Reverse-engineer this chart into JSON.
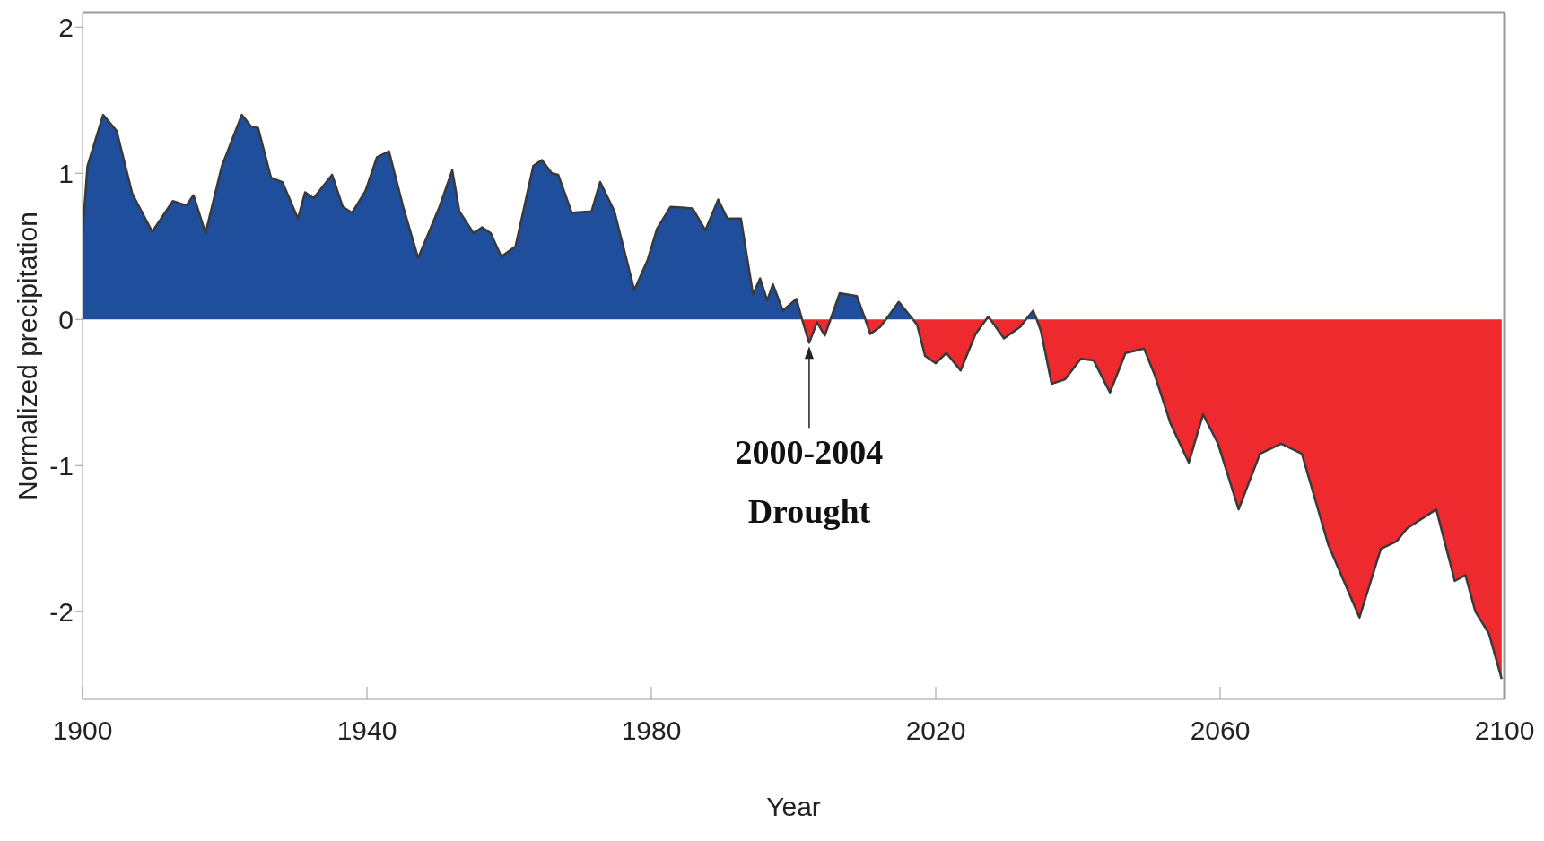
{
  "chart_data": {
    "type": "area",
    "xlabel": "Year",
    "ylabel": "Normalized precipitation",
    "xlim": [
      1900,
      2100
    ],
    "xticks": [
      1900,
      1940,
      1980,
      2020,
      2060,
      2100
    ],
    "ylim": [
      -2.6,
      2.1
    ],
    "yticks": [
      -2,
      -1,
      0,
      1,
      2
    ],
    "grid": false,
    "annotations": [
      {
        "text": "2000-2004 Drought",
        "x": 2002.2,
        "y": -0.16
      }
    ],
    "x": [
      1900,
      1900.7,
      1902.9,
      1904.8,
      1907,
      1909.8,
      1912.7,
      1914.6,
      1915.6,
      1917.3,
      1919.6,
      1922.4,
      1923.7,
      1924.7,
      1926.5,
      1928.1,
      1930.3,
      1931.3,
      1932.5,
      1935.1,
      1936.6,
      1937.9,
      1939.8,
      1941.4,
      1943.1,
      1945.1,
      1947.2,
      1950.2,
      1952,
      1953,
      1955,
      1956.2,
      1957.4,
      1958.9,
      1960.9,
      1963.4,
      1964.6,
      1966,
      1966.9,
      1968.8,
      1971.6,
      1972.8,
      1974.8,
      1977.6,
      1979.5,
      1980.8,
      1982.7,
      1985.8,
      1987.6,
      1989.4,
      1990.7,
      1992.6,
      1994.3,
      1995.3,
      1996.3,
      1997.1,
      1998.5,
      2000.4,
      2001.2,
      2002.2,
      2003.3,
      2004.4,
      2005.2,
      2006.5,
      2008.9,
      2010.1,
      2010.8,
      2012.2,
      2013.0,
      2014.8,
      2016.8,
      2017.4,
      2018.5,
      2020,
      2021.5,
      2023.5,
      2025.6,
      2027.4,
      2029.6,
      2031.9,
      2032.7,
      2033.7,
      2034.2,
      2034.8,
      2036.3,
      2038.2,
      2040.4,
      2042.2,
      2044.5,
      2046.7,
      2049.3,
      2050.8,
      2053,
      2055.6,
      2057.6,
      2059.7,
      2062.6,
      2065.6,
      2068.6,
      2071.5,
      2075.2,
      2079.6,
      2082.6,
      2084.8,
      2086.3,
      2090.4,
      2093,
      2094.5,
      2095.9,
      2097.8,
      2099.6
    ],
    "series": [
      {
        "color": "#1f4e9c",
        "values": [
          0.59,
          1.05,
          1.4,
          1.29,
          0.86,
          0.6,
          0.81,
          0.78,
          0.85,
          0.59,
          1.05,
          1.4,
          1.32,
          1.31,
          0.97,
          0.94,
          0.69,
          0.87,
          0.83,
          0.99,
          0.77,
          0.73,
          0.88,
          1.11,
          1.15,
          0.77,
          0.42,
          0.77,
          1.02,
          0.74,
          0.59,
          0.63,
          0.59,
          0.43,
          0.5,
          1.05,
          1.09,
          1.0,
          0.99,
          0.73,
          0.74,
          0.94,
          0.74,
          0.2,
          0.41,
          0.62,
          0.77,
          0.76,
          0.61,
          0.82,
          0.69,
          0.69,
          0.17,
          0.28,
          0.13,
          0.24,
          0.06,
          0.14,
          0,
          null,
          null,
          null,
          0,
          0.18,
          0.16,
          0,
          null,
          null,
          0,
          0.12,
          0,
          null,
          null,
          null,
          null,
          null,
          null,
          null,
          null,
          null,
          0,
          0.06,
          0,
          null,
          null,
          null,
          null,
          null,
          null,
          null,
          null,
          null,
          null,
          null,
          null,
          null,
          null,
          null,
          null,
          null,
          null,
          null,
          null,
          null,
          null,
          null,
          null,
          null,
          null,
          null,
          null
        ]
      },
      {
        "color": "#ee2a2e",
        "values": [
          null,
          null,
          null,
          null,
          null,
          null,
          null,
          null,
          null,
          null,
          null,
          null,
          null,
          null,
          null,
          null,
          null,
          null,
          null,
          null,
          null,
          null,
          null,
          null,
          null,
          null,
          null,
          null,
          null,
          null,
          null,
          null,
          null,
          null,
          null,
          null,
          null,
          null,
          null,
          null,
          null,
          null,
          null,
          null,
          null,
          null,
          null,
          null,
          null,
          null,
          null,
          null,
          null,
          null,
          null,
          null,
          null,
          null,
          0,
          -0.16,
          -0.02,
          -0.11,
          0,
          null,
          null,
          0,
          -0.1,
          -0.05,
          0,
          null,
          0,
          -0.04,
          -0.25,
          -0.3,
          -0.23,
          -0.35,
          -0.1,
          0.02,
          -0.13,
          -0.05,
          0,
          null,
          0,
          -0.08,
          -0.44,
          -0.41,
          -0.27,
          -0.28,
          -0.5,
          -0.23,
          -0.2,
          -0.38,
          -0.71,
          -0.98,
          -0.65,
          -0.85,
          -1.3,
          -0.92,
          -0.85,
          -0.92,
          -1.54,
          -2.04,
          -1.57,
          -1.52,
          -1.43,
          -1.3,
          -1.79,
          -1.75,
          -2.0,
          -2.15,
          -2.46
        ]
      }
    ]
  }
}
